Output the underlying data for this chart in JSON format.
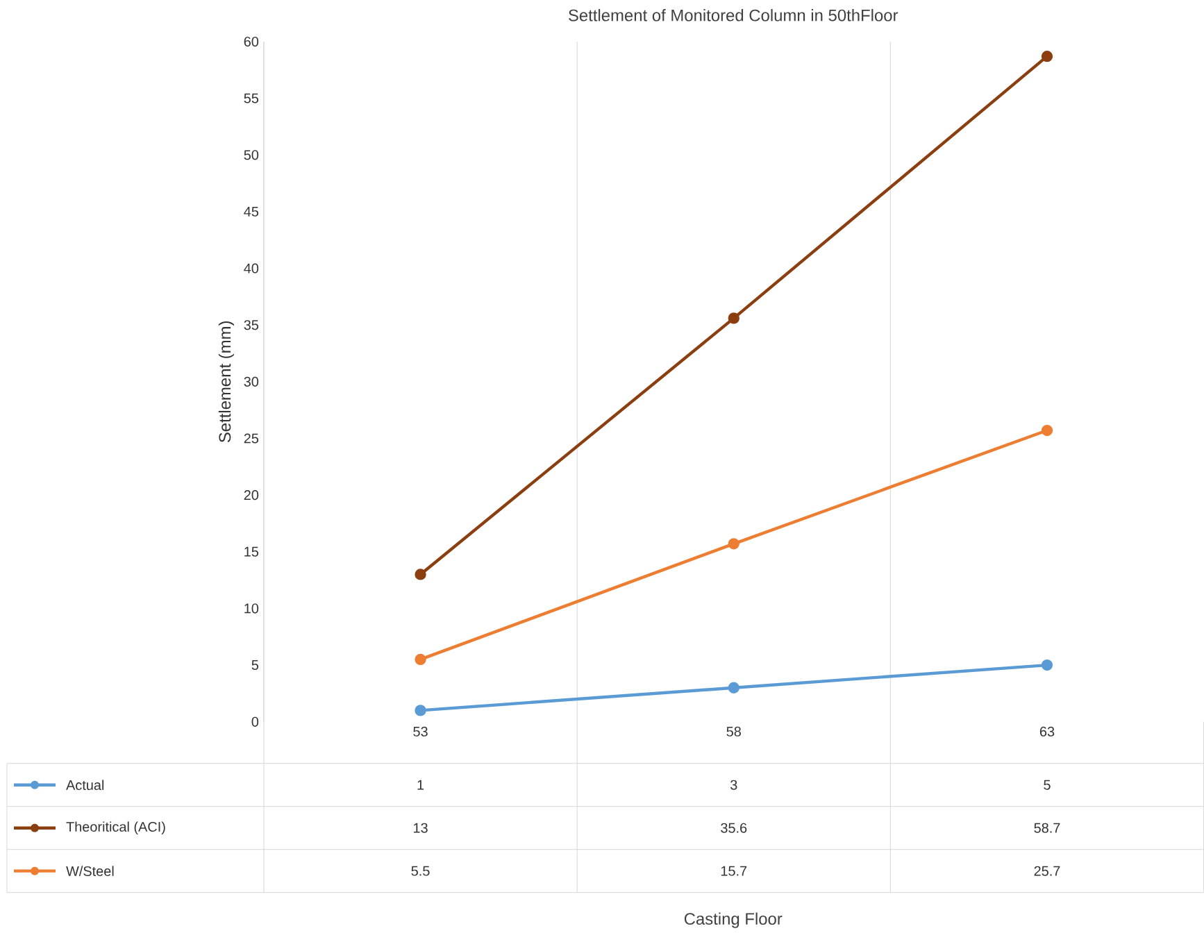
{
  "chart_data": {
    "type": "line",
    "title": "Settlement of Monitored Column in 50thFloor",
    "annotations": [
      "Casting Floor"
    ],
    "ylabel": "Settlement (mm)",
    "categories": [
      "53",
      "58",
      "63"
    ],
    "series": [
      {
        "name": "Actual",
        "color": "#5b9bd5",
        "values": [
          1,
          3,
          5
        ]
      },
      {
        "name": "Theoritical (ACI)",
        "color": "#8b3e0f",
        "values": [
          13,
          35.6,
          58.7
        ]
      },
      {
        "name": "W/Steel",
        "color": "#ed7d31",
        "values": [
          5.5,
          15.7,
          25.7
        ]
      }
    ],
    "ylim": [
      0,
      60
    ],
    "yticks": [
      0,
      5,
      10,
      15,
      20,
      25,
      30,
      35,
      40,
      45,
      50,
      55,
      60
    ],
    "marker": "circle",
    "grid": "x",
    "legend": "bottom",
    "data_labels": true
  }
}
